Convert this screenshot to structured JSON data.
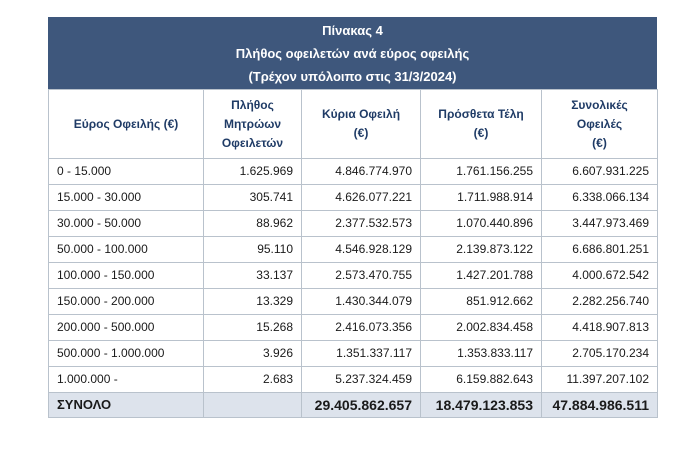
{
  "title": {
    "line1": "Πίνακας 4",
    "line2": "Πλήθος οφειλετών ανά εύρος οφειλής",
    "line3": "(Τρέχον υπόλοιπο στις 31/3/2024)"
  },
  "headers": [
    [
      "Εύρος Οφειλής (€)"
    ],
    [
      "Πλήθος",
      "Μητρώων",
      "Οφειλετών"
    ],
    [
      "Κύρια Οφειλή",
      "(€)"
    ],
    [
      "Πρόσθετα Τέλη",
      "(€)"
    ],
    [
      "Συνολικές",
      "Οφειλές",
      "(€)"
    ]
  ],
  "rows": [
    [
      "0 - 15.000",
      "1.625.969",
      "4.846.774.970",
      "1.761.156.255",
      "6.607.931.225"
    ],
    [
      "15.000 - 30.000",
      "305.741",
      "4.626.077.221",
      "1.711.988.914",
      "6.338.066.134"
    ],
    [
      "30.000 - 50.000",
      "88.962",
      "2.377.532.573",
      "1.070.440.896",
      "3.447.973.469"
    ],
    [
      "50.000 - 100.000",
      "95.110",
      "4.546.928.129",
      "2.139.873.122",
      "6.686.801.251"
    ],
    [
      "100.000 - 150.000",
      "33.137",
      "2.573.470.755",
      "1.427.201.788",
      "4.000.672.542"
    ],
    [
      "150.000 - 200.000",
      "13.329",
      "1.430.344.079",
      "851.912.662",
      "2.282.256.740"
    ],
    [
      "200.000 - 500.000",
      "15.268",
      "2.416.073.356",
      "2.002.834.458",
      "4.418.907.813"
    ],
    [
      "500.000 - 1.000.000",
      "3.926",
      "1.351.337.117",
      "1.353.833.117",
      "2.705.170.234"
    ],
    [
      "1.000.000 -",
      "2.683",
      "5.237.324.459",
      "6.159.882.643",
      "11.397.207.102"
    ]
  ],
  "total": [
    "ΣΥΝΟΛΟ",
    "",
    "29.405.862.657",
    "18.479.123.853",
    "47.884.986.511"
  ]
}
